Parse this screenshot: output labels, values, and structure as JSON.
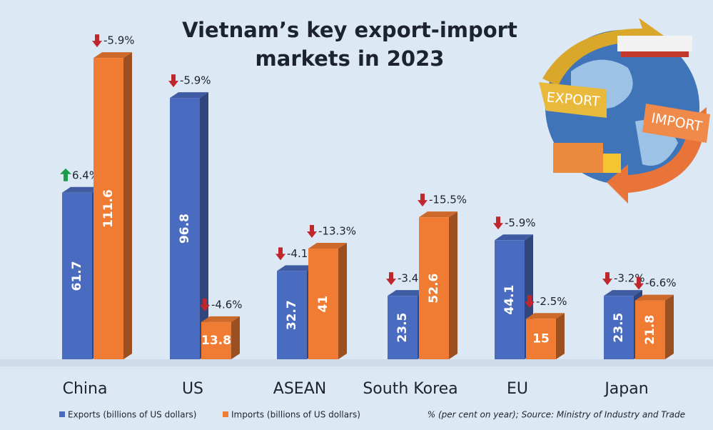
{
  "chart_data": {
    "type": "bar",
    "title": "Vietnam’s key export-import markets in 2023",
    "categories": [
      "China",
      "US",
      "ASEAN",
      "South Korea",
      "EU",
      "Japan"
    ],
    "series": [
      {
        "name": "Exports (billions of US dollars)",
        "color": "#4a6cc0",
        "values": [
          61.7,
          96.8,
          32.7,
          23.5,
          44.1,
          23.5
        ],
        "changes": [
          "6.4%",
          "-5.9%",
          "-4.1%",
          "-3.4%",
          "-5.9%",
          "-3.2%"
        ]
      },
      {
        "name": "Imports (billions of US dollars)",
        "color": "#f07b33",
        "values": [
          111.6,
          13.8,
          41,
          52.6,
          15,
          21.8
        ],
        "changes": [
          "-5.9%",
          "-4.6%",
          "-13.3%",
          "-15.5%",
          "-2.5%",
          "-6.6%"
        ]
      }
    ],
    "note": "% (per cent on year); Source: Ministry of Industry and Trade",
    "illustration": {
      "export": "EXPORT",
      "import": "IMPORT"
    }
  }
}
